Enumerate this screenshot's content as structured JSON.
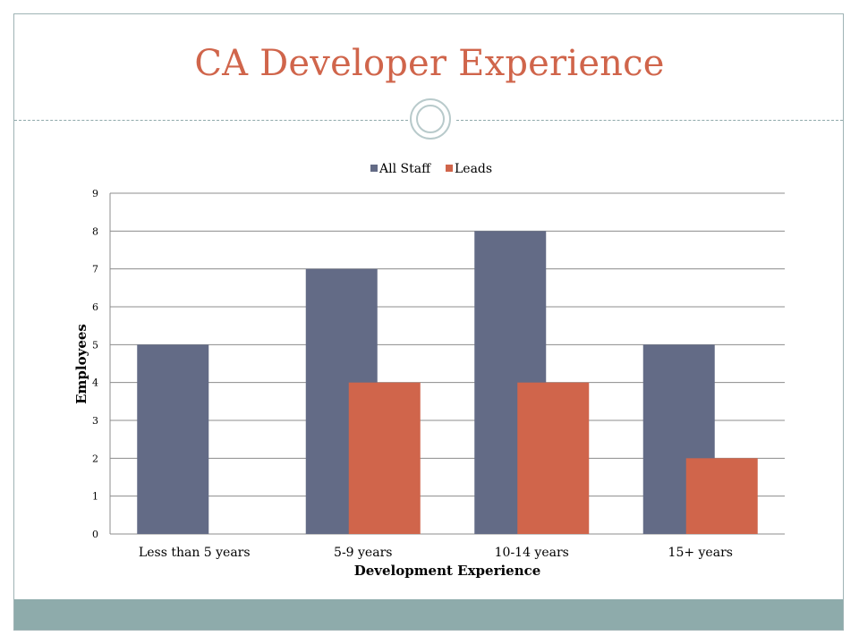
{
  "slide": {
    "title": "CA Developer Experience"
  },
  "colors": {
    "title": "#d0654b",
    "all_staff": "#636b86",
    "leads": "#d0654b",
    "footer": "#8eabab",
    "gridline": "#8c8c8c"
  },
  "chart_data": {
    "type": "bar",
    "title": "",
    "xlabel": "Development Experience",
    "ylabel": "Employees",
    "categories": [
      "Less than 5 years",
      "5-9 years",
      "10-14 years",
      "15+ years"
    ],
    "series": [
      {
        "name": "All Staff",
        "values": [
          5,
          7,
          8,
          5
        ]
      },
      {
        "name": "Leads",
        "values": [
          0,
          4,
          4,
          2
        ]
      }
    ],
    "ylim": [
      0,
      9
    ],
    "yticks": [
      "0",
      "1",
      "2",
      "3",
      "4",
      "5",
      "6",
      "7",
      "8",
      "9"
    ],
    "grid": true,
    "legend_position": "top"
  }
}
